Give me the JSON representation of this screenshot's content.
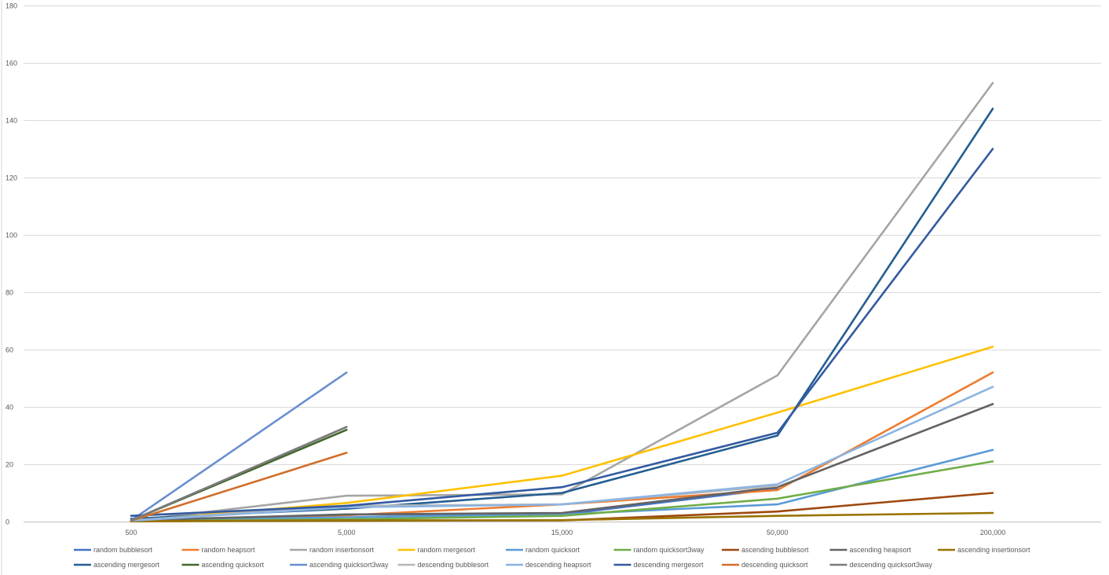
{
  "chart_data": {
    "type": "line",
    "title": "",
    "xlabel": "",
    "ylabel": "",
    "categories": [
      "500",
      "5,000",
      "15,000",
      "50,000",
      "200,000"
    ],
    "ylim": [
      0,
      180
    ],
    "yticks": [
      0,
      20,
      40,
      60,
      80,
      100,
      120,
      140,
      160,
      180
    ],
    "grid": true,
    "legend_position": "bottom",
    "series": [
      {
        "name": "random  bubblesort",
        "color": "#4472C4",
        "values": [
          0.3,
          2.5,
          2.5,
          11.5,
          null
        ]
      },
      {
        "name": "random  heapsort",
        "color": "#ED7D31",
        "values": [
          0.2,
          2.2,
          6.0,
          11.0,
          52.0
        ]
      },
      {
        "name": "random  insertionsort",
        "color": "#A5A5A5",
        "values": [
          0.3,
          9.0,
          9.5,
          51.0,
          153.0
        ]
      },
      {
        "name": "random  mergesort",
        "color": "#FFC000",
        "values": [
          0.3,
          6.5,
          16.0,
          38.0,
          61.0
        ]
      },
      {
        "name": "random  quicksort",
        "color": "#5B9BD5",
        "values": [
          0.3,
          1.5,
          2.5,
          6.0,
          25.0
        ]
      },
      {
        "name": "random  quicksort3way",
        "color": "#70AD47",
        "values": [
          0.2,
          0.8,
          2.0,
          8.0,
          21.0
        ]
      },
      {
        "name": "ascending bubblesort",
        "color": "#9E480E",
        "values": [
          0.1,
          0.4,
          0.4,
          3.5,
          10.0
        ]
      },
      {
        "name": "ascending heapsort",
        "color": "#636363",
        "values": [
          0.4,
          2.5,
          3.0,
          12.0,
          41.0
        ]
      },
      {
        "name": "ascending insertionsort",
        "color": "#997300",
        "values": [
          0.1,
          0.3,
          0.5,
          2.0,
          3.0
        ]
      },
      {
        "name": "ascending mergesort",
        "color": "#255E91",
        "values": [
          1.0,
          4.5,
          10.0,
          30.0,
          144.0
        ]
      },
      {
        "name": "ascending quicksort",
        "color": "#43682B",
        "values": [
          0.4,
          32.0,
          null,
          null,
          null
        ]
      },
      {
        "name": "ascending quicksort3way",
        "color": "#698ED0",
        "values": [
          0.4,
          52.0,
          null,
          null,
          null
        ]
      },
      {
        "name": "descending bubblesort",
        "color": "#B7B7B7",
        "values": [
          0.4,
          5.5,
          6.0,
          12.5,
          null
        ]
      },
      {
        "name": "descending heapsort",
        "color": "#8CB4E1",
        "values": [
          0.3,
          5.0,
          6.0,
          13.0,
          47.0
        ]
      },
      {
        "name": "descending mergesort",
        "color": "#335AA1",
        "values": [
          2.0,
          5.5,
          12.0,
          31.0,
          130.0
        ]
      },
      {
        "name": "descending quicksort",
        "color": "#D26E2A",
        "values": [
          0.3,
          24.0,
          null,
          null,
          null
        ]
      },
      {
        "name": "descending quicksort3way",
        "color": "#7B7B7B",
        "values": [
          0.4,
          33.0,
          null,
          null,
          null
        ]
      }
    ]
  }
}
